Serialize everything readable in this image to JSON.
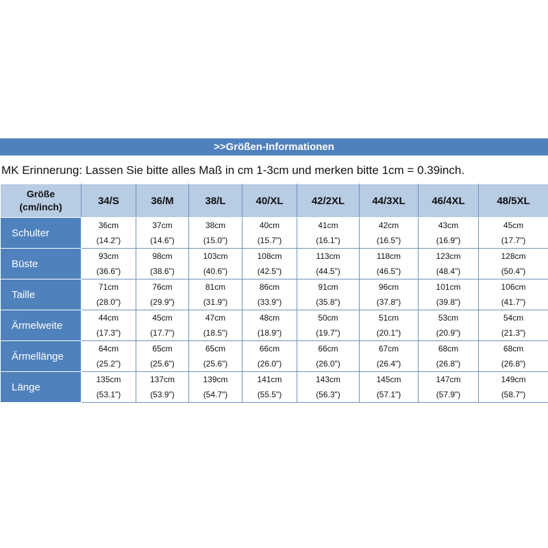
{
  "title": ">>Größen-Informationen",
  "note": "MK Erinnerung: Lassen Sie bitte alles Maß in cm 1-3cm und merken bitte 1cm = 0.39inch.",
  "header": {
    "corner_line1": "Größe",
    "corner_line2": "(cm/inch)",
    "sizes": [
      "34/S",
      "36/M",
      "38/L",
      "40/XL",
      "42/2XL",
      "44/3XL",
      "46/4XL",
      "48/5XL"
    ]
  },
  "rows": [
    {
      "label": "Schulter",
      "cells": [
        {
          "cm": "36cm",
          "inch": "(14.2\")"
        },
        {
          "cm": "37cm",
          "inch": "(14.6\")"
        },
        {
          "cm": "38cm",
          "inch": "(15.0\")"
        },
        {
          "cm": "40cm",
          "inch": "(15.7\")"
        },
        {
          "cm": "41cm",
          "inch": "(16.1\")"
        },
        {
          "cm": "42cm",
          "inch": "(16.5\")"
        },
        {
          "cm": "43cm",
          "inch": "(16.9\")"
        },
        {
          "cm": "45cm",
          "inch": "(17.7\")"
        }
      ]
    },
    {
      "label": "Büste",
      "cells": [
        {
          "cm": "93cm",
          "inch": "(36.6\")"
        },
        {
          "cm": "98cm",
          "inch": "(38.6\")"
        },
        {
          "cm": "103cm",
          "inch": "(40.6\")"
        },
        {
          "cm": "108cm",
          "inch": "(42.5\")"
        },
        {
          "cm": "113cm",
          "inch": "(44.5\")"
        },
        {
          "cm": "118cm",
          "inch": "(46.5\")"
        },
        {
          "cm": "123cm",
          "inch": "(48.4\")"
        },
        {
          "cm": "128cm",
          "inch": "(50.4\")"
        }
      ]
    },
    {
      "label": "Taille",
      "cells": [
        {
          "cm": "71cm",
          "inch": "(28.0\")"
        },
        {
          "cm": "76cm",
          "inch": "(29.9\")"
        },
        {
          "cm": "81cm",
          "inch": "(31.9\")"
        },
        {
          "cm": "86cm",
          "inch": "(33.9\")"
        },
        {
          "cm": "91cm",
          "inch": "(35.8\")"
        },
        {
          "cm": "96cm",
          "inch": "(37.8\")"
        },
        {
          "cm": "101cm",
          "inch": "(39.8\")"
        },
        {
          "cm": "106cm",
          "inch": "(41.7\")"
        }
      ]
    },
    {
      "label": "Ärmelweite",
      "cells": [
        {
          "cm": "44cm",
          "inch": "(17.3\")"
        },
        {
          "cm": "45cm",
          "inch": "(17.7\")"
        },
        {
          "cm": "47cm",
          "inch": "(18.5\")"
        },
        {
          "cm": "48cm",
          "inch": "(18.9\")"
        },
        {
          "cm": "50cm",
          "inch": "(19.7\")"
        },
        {
          "cm": "51cm",
          "inch": "(20.1\")"
        },
        {
          "cm": "53cm",
          "inch": "(20.9\")"
        },
        {
          "cm": "54cm",
          "inch": "(21.3\")"
        }
      ]
    },
    {
      "label": "Ärmellänge",
      "cells": [
        {
          "cm": "64cm",
          "inch": "(25.2\")"
        },
        {
          "cm": "65cm",
          "inch": "(25.6\")"
        },
        {
          "cm": "65cm",
          "inch": "(25.6\")"
        },
        {
          "cm": "66cm",
          "inch": "(26.0\")"
        },
        {
          "cm": "66cm",
          "inch": "(26.0\")"
        },
        {
          "cm": "67cm",
          "inch": "(26.4\")"
        },
        {
          "cm": "68cm",
          "inch": "(26.8\")"
        },
        {
          "cm": "68cm",
          "inch": "(26.8\")"
        }
      ]
    },
    {
      "label": "Länge",
      "cells": [
        {
          "cm": "135cm",
          "inch": "(53.1\")"
        },
        {
          "cm": "137cm",
          "inch": "(53.9\")"
        },
        {
          "cm": "139cm",
          "inch": "(54.7\")"
        },
        {
          "cm": "141cm",
          "inch": "(55.5\")"
        },
        {
          "cm": "143cm",
          "inch": "(56.3\")"
        },
        {
          "cm": "145cm",
          "inch": "(57.1\")"
        },
        {
          "cm": "147cm",
          "inch": "(57.9\")"
        },
        {
          "cm": "149cm",
          "inch": "(58.7\")"
        }
      ]
    }
  ],
  "colors": {
    "header_blue": "#4f81bd",
    "header_light": "#b8cce4",
    "border": "#6f90bd"
  }
}
